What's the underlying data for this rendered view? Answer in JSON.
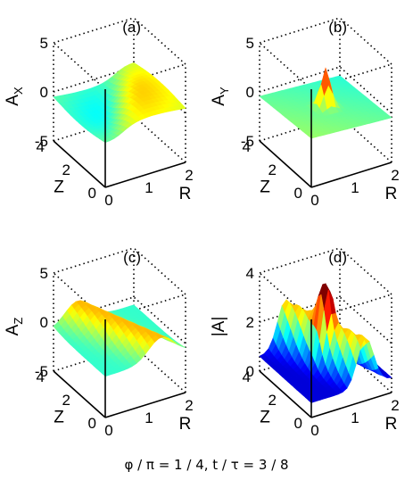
{
  "caption": "φ / π = 1 / 4, t / τ = 3 / 8",
  "colors": {
    "jet_low": "#00008f",
    "jet_mid": "#7fff7f",
    "jet_high": "#8f0000"
  },
  "chart_data": [
    {
      "type": "surface",
      "panel_label": "(a)",
      "zlabel": "A",
      "zlabel_sub": "X",
      "xlabel": "R",
      "ylabel": "Z",
      "x_ticks": [
        "0",
        "1",
        "2"
      ],
      "y_ticks": [
        "0",
        "2",
        "4"
      ],
      "z_ticks": [
        "-5",
        "0",
        "5"
      ],
      "xlim": [
        0,
        2
      ],
      "ylim": [
        0,
        4
      ],
      "zlim": [
        -5,
        5
      ],
      "grid": "dotted box",
      "surface_shape": "antisymmetric",
      "amplitude": 1.4,
      "colorscale": "jet"
    },
    {
      "type": "surface",
      "panel_label": "(b)",
      "zlabel": "A",
      "zlabel_sub": "Y",
      "xlabel": "R",
      "ylabel": "Z",
      "x_ticks": [
        "0",
        "1",
        "2"
      ],
      "y_ticks": [
        "0",
        "2",
        "4"
      ],
      "z_ticks": [
        "-5",
        "0",
        "5"
      ],
      "xlim": [
        0,
        2
      ],
      "ylim": [
        0,
        4
      ],
      "zlim": [
        -5,
        5
      ],
      "grid": "dotted box",
      "surface_shape": "central_peak",
      "amplitude": 1.8,
      "colorscale": "jet"
    },
    {
      "type": "surface",
      "panel_label": "(c)",
      "zlabel": "A",
      "zlabel_sub": "Z",
      "xlabel": "R",
      "ylabel": "Z",
      "x_ticks": [
        "0",
        "1",
        "2"
      ],
      "y_ticks": [
        "0",
        "2",
        "4"
      ],
      "z_ticks": [
        "-5",
        "0",
        "5"
      ],
      "xlim": [
        0,
        2
      ],
      "ylim": [
        0,
        4
      ],
      "zlim": [
        -5,
        5
      ],
      "grid": "dotted box",
      "surface_shape": "ridge",
      "amplitude": 2.2,
      "colorscale": "jet"
    },
    {
      "type": "surface",
      "panel_label": "(d)",
      "zlabel": "|A|",
      "zlabel_sub": "",
      "xlabel": "R",
      "ylabel": "Z",
      "x_ticks": [
        "0",
        "1",
        "2"
      ],
      "y_ticks": [
        "0",
        "2",
        "4"
      ],
      "z_ticks": [
        "0",
        "2",
        "4"
      ],
      "xlim": [
        0,
        2
      ],
      "ylim": [
        0,
        4
      ],
      "zlim": [
        0,
        4
      ],
      "grid": "dotted box",
      "surface_shape": "magnitude_ridge_peak",
      "amplitude": 3.6,
      "colorscale": "jet"
    }
  ]
}
